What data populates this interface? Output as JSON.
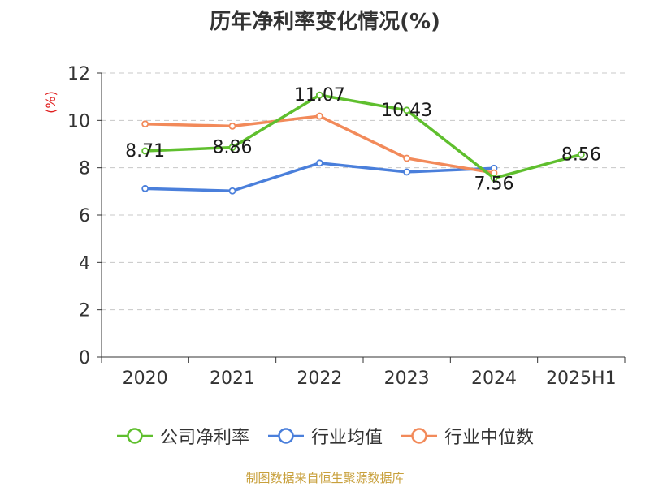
{
  "chart_data": {
    "type": "line",
    "title": "历年净利率变化情况(%)",
    "ylabel": "(%)",
    "categories": [
      "2020",
      "2021",
      "2022",
      "2023",
      "2024",
      "2025H1"
    ],
    "ylim": [
      0,
      12
    ],
    "yticks": [
      0,
      2,
      4,
      6,
      8,
      10,
      12
    ],
    "grid": true,
    "legend_position": "bottom",
    "series": [
      {
        "name": "公司净利率",
        "color": "#5fbf2e",
        "values": [
          8.71,
          8.86,
          11.07,
          10.43,
          7.56,
          8.56
        ],
        "labels": [
          "8.71",
          "8.86",
          "11.07",
          "10.43",
          "7.56",
          "8.56"
        ]
      },
      {
        "name": "行业均值",
        "color": "#4a7fdb",
        "values": [
          7.12,
          7.02,
          8.2,
          7.82,
          7.98,
          null
        ]
      },
      {
        "name": "行业中位数",
        "color": "#f28a5a",
        "values": [
          9.85,
          9.76,
          10.18,
          8.4,
          7.78,
          null
        ]
      }
    ]
  },
  "footer": {
    "source": "制图数据来自恒生聚源数据库"
  }
}
